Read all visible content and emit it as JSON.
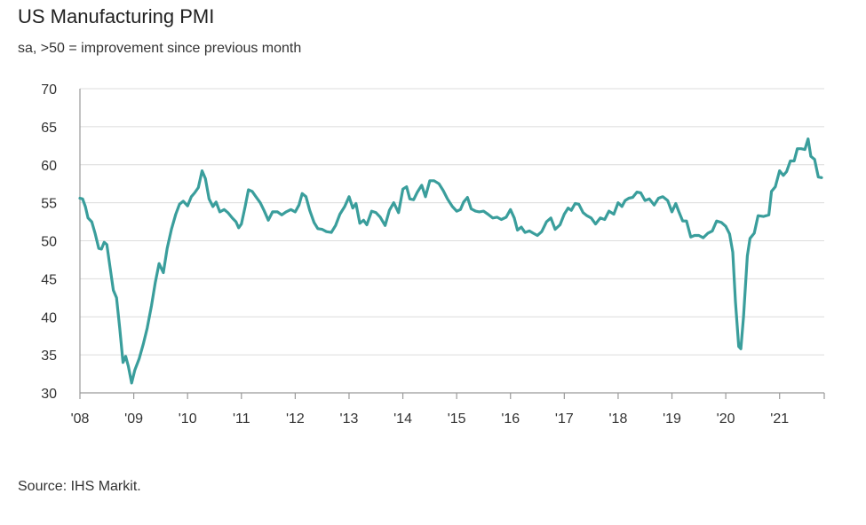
{
  "chart_data": {
    "type": "line",
    "title": "US Manufacturing PMI",
    "subtitle": "sa, >50 = improvement since previous month",
    "source": "Source: IHS Markit.",
    "xlabel": "",
    "ylabel": "",
    "ylim": [
      30,
      70
    ],
    "yticks": [
      30,
      35,
      40,
      45,
      50,
      55,
      60,
      65,
      70
    ],
    "xlim": [
      2008.0,
      2021.83
    ],
    "xticks": [
      {
        "value": 2008,
        "label": "'08"
      },
      {
        "value": 2009,
        "label": "'09"
      },
      {
        "value": 2010,
        "label": "'10"
      },
      {
        "value": 2011,
        "label": "'11"
      },
      {
        "value": 2012,
        "label": "'12"
      },
      {
        "value": 2013,
        "label": "'13"
      },
      {
        "value": 2014,
        "label": "'14"
      },
      {
        "value": 2015,
        "label": "'15"
      },
      {
        "value": 2016,
        "label": "'16"
      },
      {
        "value": 2017,
        "label": "'17"
      },
      {
        "value": 2018,
        "label": "'18"
      },
      {
        "value": 2019,
        "label": "'19"
      },
      {
        "value": 2020,
        "label": "'20"
      },
      {
        "value": 2021,
        "label": "'21"
      }
    ],
    "grid": true,
    "line_color": "#3a9e9c",
    "series": [
      {
        "points": [
          [
            2008.0,
            55.6
          ],
          [
            2008.05,
            55.5
          ],
          [
            2008.1,
            54.5
          ],
          [
            2008.15,
            53.0
          ],
          [
            2008.22,
            52.5
          ],
          [
            2008.28,
            51.0
          ],
          [
            2008.35,
            49.0
          ],
          [
            2008.4,
            48.9
          ],
          [
            2008.45,
            49.8
          ],
          [
            2008.5,
            49.5
          ],
          [
            2008.55,
            47.0
          ],
          [
            2008.62,
            43.5
          ],
          [
            2008.68,
            42.5
          ],
          [
            2008.74,
            38.5
          ],
          [
            2008.8,
            34.0
          ],
          [
            2008.85,
            34.8
          ],
          [
            2008.9,
            33.5
          ],
          [
            2008.96,
            31.3
          ],
          [
            2009.02,
            33.0
          ],
          [
            2009.1,
            34.5
          ],
          [
            2009.18,
            36.5
          ],
          [
            2009.25,
            38.5
          ],
          [
            2009.33,
            41.5
          ],
          [
            2009.4,
            44.5
          ],
          [
            2009.47,
            47.0
          ],
          [
            2009.55,
            45.8
          ],
          [
            2009.62,
            49.0
          ],
          [
            2009.7,
            51.5
          ],
          [
            2009.78,
            53.5
          ],
          [
            2009.85,
            54.8
          ],
          [
            2009.92,
            55.2
          ],
          [
            2010.0,
            54.6
          ],
          [
            2010.07,
            55.8
          ],
          [
            2010.13,
            56.3
          ],
          [
            2010.2,
            57.0
          ],
          [
            2010.27,
            59.2
          ],
          [
            2010.33,
            58.2
          ],
          [
            2010.4,
            55.5
          ],
          [
            2010.47,
            54.5
          ],
          [
            2010.53,
            55.1
          ],
          [
            2010.6,
            53.8
          ],
          [
            2010.68,
            54.1
          ],
          [
            2010.75,
            53.7
          ],
          [
            2010.83,
            53.0
          ],
          [
            2010.9,
            52.5
          ],
          [
            2010.95,
            51.7
          ],
          [
            2011.0,
            52.2
          ],
          [
            2011.07,
            54.5
          ],
          [
            2011.13,
            56.7
          ],
          [
            2011.2,
            56.5
          ],
          [
            2011.27,
            55.8
          ],
          [
            2011.35,
            55.0
          ],
          [
            2011.42,
            54.0
          ],
          [
            2011.5,
            52.7
          ],
          [
            2011.58,
            53.8
          ],
          [
            2011.67,
            53.8
          ],
          [
            2011.75,
            53.4
          ],
          [
            2011.83,
            53.8
          ],
          [
            2011.92,
            54.1
          ],
          [
            2012.0,
            53.8
          ],
          [
            2012.07,
            54.7
          ],
          [
            2012.13,
            56.2
          ],
          [
            2012.2,
            55.8
          ],
          [
            2012.27,
            54.0
          ],
          [
            2012.35,
            52.4
          ],
          [
            2012.42,
            51.6
          ],
          [
            2012.5,
            51.5
          ],
          [
            2012.58,
            51.2
          ],
          [
            2012.67,
            51.1
          ],
          [
            2012.75,
            52.0
          ],
          [
            2012.83,
            53.5
          ],
          [
            2012.92,
            54.5
          ],
          [
            2013.0,
            55.8
          ],
          [
            2013.07,
            54.3
          ],
          [
            2013.13,
            54.9
          ],
          [
            2013.2,
            52.3
          ],
          [
            2013.27,
            52.7
          ],
          [
            2013.33,
            52.1
          ],
          [
            2013.42,
            53.9
          ],
          [
            2013.5,
            53.7
          ],
          [
            2013.58,
            53.1
          ],
          [
            2013.67,
            52.0
          ],
          [
            2013.75,
            54.0
          ],
          [
            2013.83,
            55.0
          ],
          [
            2013.92,
            53.7
          ],
          [
            2014.0,
            56.8
          ],
          [
            2014.07,
            57.1
          ],
          [
            2014.13,
            55.5
          ],
          [
            2014.2,
            55.4
          ],
          [
            2014.27,
            56.4
          ],
          [
            2014.35,
            57.3
          ],
          [
            2014.42,
            55.8
          ],
          [
            2014.5,
            57.9
          ],
          [
            2014.58,
            57.9
          ],
          [
            2014.67,
            57.5
          ],
          [
            2014.75,
            56.6
          ],
          [
            2014.83,
            55.5
          ],
          [
            2014.92,
            54.5
          ],
          [
            2015.0,
            53.9
          ],
          [
            2015.07,
            54.1
          ],
          [
            2015.13,
            55.1
          ],
          [
            2015.2,
            55.7
          ],
          [
            2015.27,
            54.2
          ],
          [
            2015.35,
            53.9
          ],
          [
            2015.42,
            53.8
          ],
          [
            2015.5,
            53.9
          ],
          [
            2015.58,
            53.5
          ],
          [
            2015.67,
            53.0
          ],
          [
            2015.75,
            53.1
          ],
          [
            2015.83,
            52.8
          ],
          [
            2015.92,
            53.1
          ],
          [
            2016.0,
            54.1
          ],
          [
            2016.07,
            53.0
          ],
          [
            2016.13,
            51.4
          ],
          [
            2016.2,
            51.8
          ],
          [
            2016.27,
            51.1
          ],
          [
            2016.35,
            51.3
          ],
          [
            2016.42,
            51.0
          ],
          [
            2016.5,
            50.7
          ],
          [
            2016.58,
            51.2
          ],
          [
            2016.67,
            52.5
          ],
          [
            2016.75,
            53.0
          ],
          [
            2016.83,
            51.5
          ],
          [
            2016.92,
            52.1
          ],
          [
            2017.0,
            53.5
          ],
          [
            2017.07,
            54.3
          ],
          [
            2017.13,
            54.0
          ],
          [
            2017.2,
            54.9
          ],
          [
            2017.27,
            54.8
          ],
          [
            2017.35,
            53.7
          ],
          [
            2017.42,
            53.3
          ],
          [
            2017.5,
            53.0
          ],
          [
            2017.58,
            52.2
          ],
          [
            2017.67,
            53.0
          ],
          [
            2017.75,
            52.8
          ],
          [
            2017.83,
            53.9
          ],
          [
            2017.92,
            53.5
          ],
          [
            2018.0,
            55.0
          ],
          [
            2018.07,
            54.5
          ],
          [
            2018.13,
            55.3
          ],
          [
            2018.2,
            55.6
          ],
          [
            2018.27,
            55.7
          ],
          [
            2018.35,
            56.4
          ],
          [
            2018.42,
            56.3
          ],
          [
            2018.5,
            55.3
          ],
          [
            2018.58,
            55.5
          ],
          [
            2018.67,
            54.7
          ],
          [
            2018.75,
            55.6
          ],
          [
            2018.83,
            55.8
          ],
          [
            2018.92,
            55.3
          ],
          [
            2019.0,
            53.8
          ],
          [
            2019.07,
            54.9
          ],
          [
            2019.13,
            53.8
          ],
          [
            2019.2,
            52.6
          ],
          [
            2019.27,
            52.6
          ],
          [
            2019.35,
            50.5
          ],
          [
            2019.42,
            50.7
          ],
          [
            2019.5,
            50.7
          ],
          [
            2019.58,
            50.4
          ],
          [
            2019.67,
            51.0
          ],
          [
            2019.75,
            51.3
          ],
          [
            2019.83,
            52.6
          ],
          [
            2019.92,
            52.4
          ],
          [
            2020.0,
            51.9
          ],
          [
            2020.07,
            50.9
          ],
          [
            2020.13,
            48.5
          ],
          [
            2020.18,
            42.0
          ],
          [
            2020.24,
            36.1
          ],
          [
            2020.28,
            35.8
          ],
          [
            2020.33,
            40.0
          ],
          [
            2020.4,
            48.0
          ],
          [
            2020.45,
            50.3
          ],
          [
            2020.53,
            51.0
          ],
          [
            2020.6,
            53.3
          ],
          [
            2020.7,
            53.2
          ],
          [
            2020.8,
            53.4
          ],
          [
            2020.85,
            56.5
          ],
          [
            2020.92,
            57.1
          ],
          [
            2021.0,
            59.2
          ],
          [
            2021.07,
            58.6
          ],
          [
            2021.13,
            59.1
          ],
          [
            2021.2,
            60.5
          ],
          [
            2021.27,
            60.5
          ],
          [
            2021.33,
            62.1
          ],
          [
            2021.4,
            62.1
          ],
          [
            2021.47,
            62.0
          ],
          [
            2021.53,
            63.4
          ],
          [
            2021.58,
            61.1
          ],
          [
            2021.65,
            60.7
          ],
          [
            2021.72,
            58.4
          ],
          [
            2021.78,
            58.3
          ]
        ]
      }
    ]
  }
}
